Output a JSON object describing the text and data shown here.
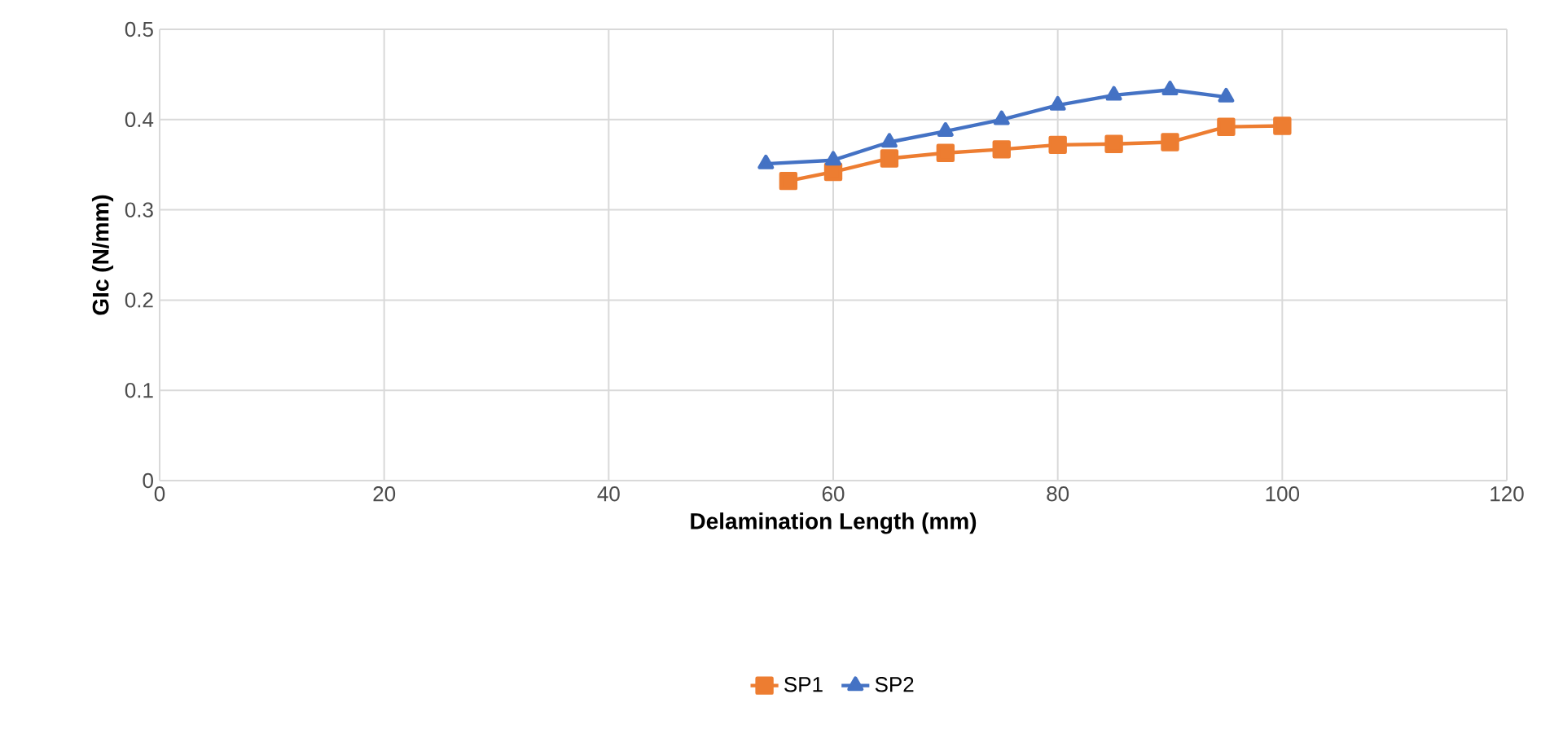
{
  "chart_data": {
    "type": "line",
    "xlabel": "Delamination Length (mm)",
    "ylabel": "GIc (N/mm)",
    "xlim": [
      0,
      120
    ],
    "xticks": [
      0,
      20,
      40,
      60,
      80,
      100,
      120
    ],
    "ylim": [
      0,
      0.5
    ],
    "yticks": [
      0,
      0.1,
      0.2,
      0.3,
      0.4,
      0.5
    ],
    "grid": true,
    "legend": "bottom",
    "line_style": "solid",
    "series": [
      {
        "name": "SP1",
        "color": "#ed7d31",
        "marker": "square",
        "x": [
          56,
          60,
          65,
          70,
          75,
          80,
          85,
          90,
          95,
          100
        ],
        "values": [
          0.332,
          0.342,
          0.357,
          0.363,
          0.367,
          0.372,
          0.373,
          0.375,
          0.392,
          0.393
        ]
      },
      {
        "name": "SP2",
        "color": "#4472c4",
        "marker": "triangle",
        "x": [
          54,
          60,
          65,
          70,
          75,
          80,
          85,
          90,
          95
        ],
        "values": [
          0.351,
          0.355,
          0.375,
          0.387,
          0.4,
          0.416,
          0.427,
          0.433,
          0.425
        ]
      }
    ]
  }
}
